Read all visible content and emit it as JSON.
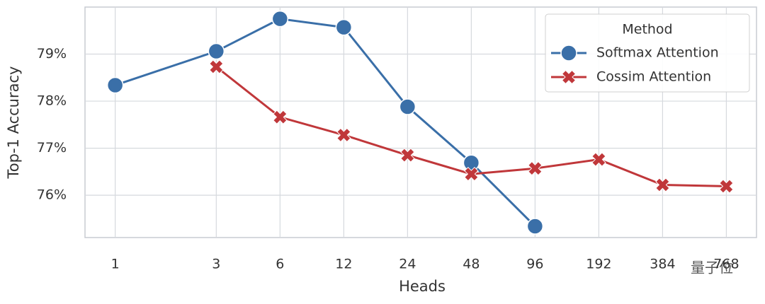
{
  "chart_data": {
    "type": "line",
    "xlabel": "Heads",
    "ylabel": "Top-1 Accuracy",
    "x": [
      1,
      3,
      6,
      12,
      24,
      48,
      96,
      192,
      384,
      768
    ],
    "xscale": "log",
    "xlim": [
      0.72,
      1066
    ],
    "xticks": [
      1,
      3,
      6,
      12,
      24,
      48,
      96,
      192,
      384,
      768
    ],
    "ylim": [
      75.1,
      80.0
    ],
    "yticks": [
      {
        "value": 76,
        "label": "76%"
      },
      {
        "value": 77,
        "label": "77%"
      },
      {
        "value": 78,
        "label": "78%"
      },
      {
        "value": 79,
        "label": "79%"
      }
    ],
    "grid": true,
    "legend_title": "Method",
    "legend_loc": "upper right",
    "series": [
      {
        "name": "Softmax Attention",
        "color": "#3a6fa8",
        "marker": "o",
        "values": [
          78.34,
          79.06,
          79.75,
          79.57,
          77.88,
          76.69,
          75.34,
          null,
          null,
          null
        ]
      },
      {
        "name": "Cossim Attention",
        "color": "#c0373a",
        "marker": "X",
        "values": [
          null,
          78.73,
          77.66,
          77.28,
          76.85,
          76.45,
          76.57,
          76.76,
          76.22,
          76.19
        ]
      }
    ]
  },
  "watermark": "量子位"
}
